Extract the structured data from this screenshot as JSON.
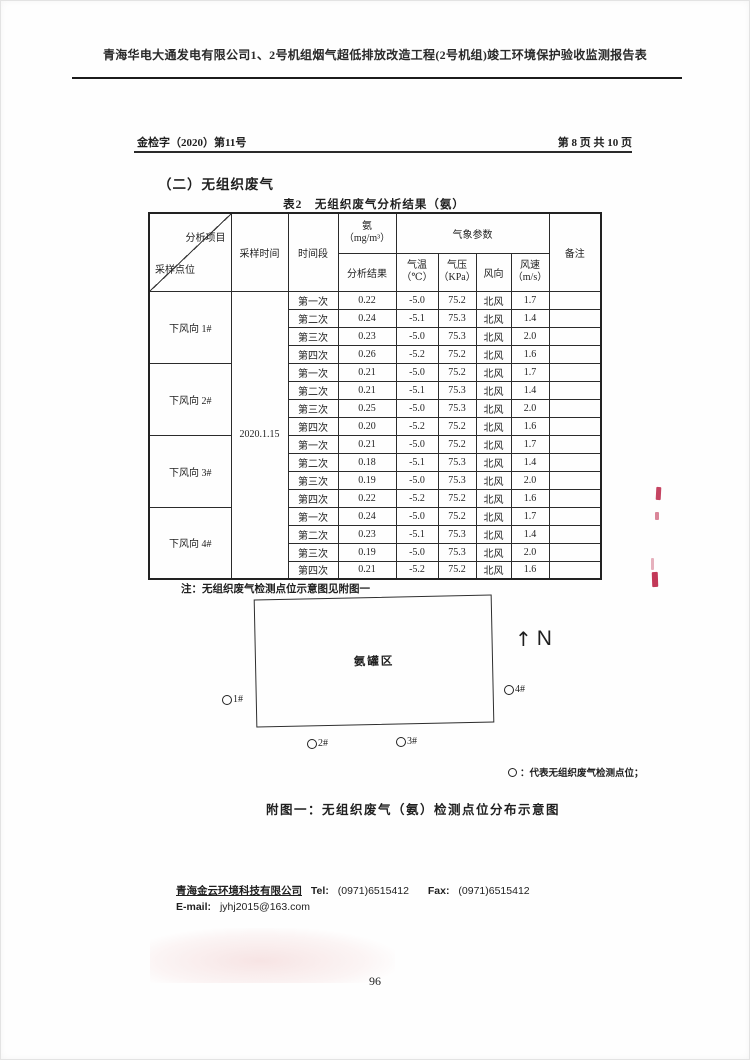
{
  "page": {
    "header_title": "青海华电大通发电有限公司1、2号机组烟气超低排放改造工程(2号机组)竣工环境保护验收监测报告表",
    "doc_ref": "金检字（2020）第11号",
    "page_info": "第 8 页 共 10 页",
    "page_number": "96"
  },
  "section": {
    "title": "（二）无组织废气"
  },
  "table": {
    "title": "表2　无组织废气分析结果（氨）",
    "corner": {
      "top": "分析项目",
      "bottom": "采样点位"
    },
    "headers": {
      "sampling_time": "采样时间",
      "time_period": "时间段",
      "ammonia_line1": "氨",
      "ammonia_line2": "（mg/m³）",
      "analysis_result": "分析结果",
      "met_params": "气象参数",
      "temp_line1": "气温",
      "temp_line2": "（℃）",
      "pressure_line1": "气压",
      "pressure_line2": "（KPa）",
      "wind_dir": "风向",
      "wind_speed_line1": "风速",
      "wind_speed_line2": "（m/s）",
      "remark": "备注"
    },
    "sampling_time_value": "2020.1.15",
    "groups": [
      {
        "site": "下风向 1#",
        "rows": [
          {
            "period": "第一次",
            "ammonia": "0.22",
            "temp": "-5.0",
            "pressure": "75.2",
            "wind_dir": "北风",
            "wind_speed": "1.7",
            "remark": ""
          },
          {
            "period": "第二次",
            "ammonia": "0.24",
            "temp": "-5.1",
            "pressure": "75.3",
            "wind_dir": "北风",
            "wind_speed": "1.4",
            "remark": ""
          },
          {
            "period": "第三次",
            "ammonia": "0.23",
            "temp": "-5.0",
            "pressure": "75.3",
            "wind_dir": "北风",
            "wind_speed": "2.0",
            "remark": ""
          },
          {
            "period": "第四次",
            "ammonia": "0.26",
            "temp": "-5.2",
            "pressure": "75.2",
            "wind_dir": "北风",
            "wind_speed": "1.6",
            "remark": ""
          }
        ]
      },
      {
        "site": "下风向 2#",
        "rows": [
          {
            "period": "第一次",
            "ammonia": "0.21",
            "temp": "-5.0",
            "pressure": "75.2",
            "wind_dir": "北风",
            "wind_speed": "1.7",
            "remark": ""
          },
          {
            "period": "第二次",
            "ammonia": "0.21",
            "temp": "-5.1",
            "pressure": "75.3",
            "wind_dir": "北风",
            "wind_speed": "1.4",
            "remark": ""
          },
          {
            "period": "第三次",
            "ammonia": "0.25",
            "temp": "-5.0",
            "pressure": "75.3",
            "wind_dir": "北风",
            "wind_speed": "2.0",
            "remark": ""
          },
          {
            "period": "第四次",
            "ammonia": "0.20",
            "temp": "-5.2",
            "pressure": "75.2",
            "wind_dir": "北风",
            "wind_speed": "1.6",
            "remark": ""
          }
        ]
      },
      {
        "site": "下风向 3#",
        "rows": [
          {
            "period": "第一次",
            "ammonia": "0.21",
            "temp": "-5.0",
            "pressure": "75.2",
            "wind_dir": "北风",
            "wind_speed": "1.7",
            "remark": ""
          },
          {
            "period": "第二次",
            "ammonia": "0.18",
            "temp": "-5.1",
            "pressure": "75.3",
            "wind_dir": "北风",
            "wind_speed": "1.4",
            "remark": ""
          },
          {
            "period": "第三次",
            "ammonia": "0.19",
            "temp": "-5.0",
            "pressure": "75.3",
            "wind_dir": "北风",
            "wind_speed": "2.0",
            "remark": ""
          },
          {
            "period": "第四次",
            "ammonia": "0.22",
            "temp": "-5.2",
            "pressure": "75.2",
            "wind_dir": "北风",
            "wind_speed": "1.6",
            "remark": ""
          }
        ]
      },
      {
        "site": "下风向 4#",
        "rows": [
          {
            "period": "第一次",
            "ammonia": "0.24",
            "temp": "-5.0",
            "pressure": "75.2",
            "wind_dir": "北风",
            "wind_speed": "1.7",
            "remark": ""
          },
          {
            "period": "第二次",
            "ammonia": "0.23",
            "temp": "-5.1",
            "pressure": "75.3",
            "wind_dir": "北风",
            "wind_speed": "1.4",
            "remark": ""
          },
          {
            "period": "第三次",
            "ammonia": "0.19",
            "temp": "-5.0",
            "pressure": "75.3",
            "wind_dir": "北风",
            "wind_speed": "2.0",
            "remark": ""
          },
          {
            "period": "第四次",
            "ammonia": "0.21",
            "temp": "-5.2",
            "pressure": "75.2",
            "wind_dir": "北风",
            "wind_speed": "1.6",
            "remark": ""
          }
        ]
      }
    ],
    "note": "注：无组织废气检测点位示意图见附图一"
  },
  "diagram": {
    "area_label": "氨罐区",
    "north_arrow": "↑",
    "north_label": "N",
    "points": [
      {
        "label": "1#"
      },
      {
        "label": "2#"
      },
      {
        "label": "3#"
      },
      {
        "label": "4#"
      }
    ],
    "legend_text": "：代表无组织废气检测点位；",
    "caption": "附图一：无组织废气（氨）检测点位分布示意图"
  },
  "footer": {
    "company": "青海金云环境科技有限公司",
    "tel_label": "Tel:",
    "tel": "(0971)6515412",
    "fax_label": "Fax:",
    "fax": "(0971)6515412",
    "email_label": "E-mail:",
    "email": "jyhj2015@163.com"
  },
  "colors": {
    "ink": "#1f1f1f",
    "footer_green": "#3a5231",
    "stamp_red": "#bb2346"
  }
}
